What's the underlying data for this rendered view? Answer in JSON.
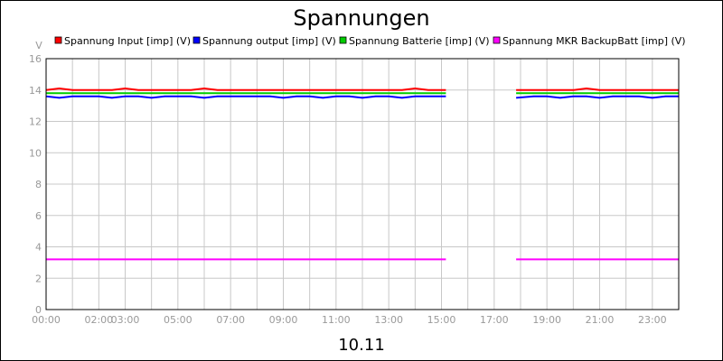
{
  "chart_data": {
    "type": "line",
    "title": "Spannungen",
    "xlabel": "10.11",
    "ylabel": "V",
    "xlim": [
      "00:00",
      "24:00"
    ],
    "ylim": [
      0,
      16
    ],
    "grid": true,
    "legend_position": "top",
    "x_ticks": [
      "00:00",
      "02:00",
      "03:00",
      "05:00",
      "07:00",
      "09:00",
      "11:00",
      "13:00",
      "15:00",
      "17:00",
      "19:00",
      "21:00",
      "23:00"
    ],
    "y_ticks": [
      0,
      2,
      4,
      6,
      8,
      10,
      12,
      14,
      16
    ],
    "gap": [
      "15:10",
      "17:50"
    ],
    "series": [
      {
        "name": "Spannung Input [imp] (V)",
        "color": "#ff0000",
        "segments": [
          {
            "x": [
              "00:00",
              "00:30",
              "01:00",
              "01:30",
              "02:00",
              "02:30",
              "03:00",
              "03:30",
              "04:00",
              "04:30",
              "05:00",
              "05:30",
              "06:00",
              "06:30",
              "07:00",
              "07:30",
              "08:00",
              "08:30",
              "09:00",
              "09:30",
              "10:00",
              "10:30",
              "11:00",
              "11:30",
              "12:00",
              "12:30",
              "13:00",
              "13:30",
              "14:00",
              "14:30",
              "15:10"
            ],
            "y": [
              14.0,
              14.1,
              14.0,
              14.0,
              14.0,
              14.0,
              14.1,
              14.0,
              14.0,
              14.0,
              14.0,
              14.0,
              14.1,
              14.0,
              14.0,
              14.0,
              14.0,
              14.0,
              14.0,
              14.0,
              14.0,
              14.0,
              14.0,
              14.0,
              14.0,
              14.0,
              14.0,
              14.0,
              14.1,
              14.0,
              14.0
            ]
          },
          {
            "x": [
              "17:50",
              "18:30",
              "19:00",
              "19:30",
              "20:00",
              "20:30",
              "21:00",
              "21:30",
              "22:00",
              "22:30",
              "23:00",
              "23:30",
              "24:00"
            ],
            "y": [
              14.0,
              14.0,
              14.0,
              14.0,
              14.0,
              14.1,
              14.0,
              14.0,
              14.0,
              14.0,
              14.0,
              14.0,
              14.0
            ]
          }
        ]
      },
      {
        "name": "Spannung output [imp] (V)",
        "color": "#0000ff",
        "segments": [
          {
            "x": [
              "00:00",
              "00:30",
              "01:00",
              "01:30",
              "02:00",
              "02:30",
              "03:00",
              "03:30",
              "04:00",
              "04:30",
              "05:00",
              "05:30",
              "06:00",
              "06:30",
              "07:00",
              "07:30",
              "08:00",
              "08:30",
              "09:00",
              "09:30",
              "10:00",
              "10:30",
              "11:00",
              "11:30",
              "12:00",
              "12:30",
              "13:00",
              "13:30",
              "14:00",
              "14:30",
              "15:10"
            ],
            "y": [
              13.6,
              13.5,
              13.6,
              13.6,
              13.6,
              13.5,
              13.6,
              13.6,
              13.5,
              13.6,
              13.6,
              13.6,
              13.5,
              13.6,
              13.6,
              13.6,
              13.6,
              13.6,
              13.5,
              13.6,
              13.6,
              13.5,
              13.6,
              13.6,
              13.5,
              13.6,
              13.6,
              13.5,
              13.6,
              13.6,
              13.6
            ]
          },
          {
            "x": [
              "17:50",
              "18:30",
              "19:00",
              "19:30",
              "20:00",
              "20:30",
              "21:00",
              "21:30",
              "22:00",
              "22:30",
              "23:00",
              "23:30",
              "24:00"
            ],
            "y": [
              13.5,
              13.6,
              13.6,
              13.5,
              13.6,
              13.6,
              13.5,
              13.6,
              13.6,
              13.6,
              13.5,
              13.6,
              13.6
            ]
          }
        ]
      },
      {
        "name": "Spannung Batterie [imp] (V)",
        "color": "#00cc00",
        "segments": [
          {
            "x": [
              "00:00",
              "01:00",
              "02:00",
              "03:00",
              "04:00",
              "05:00",
              "06:00",
              "07:00",
              "08:00",
              "09:00",
              "10:00",
              "11:00",
              "12:00",
              "13:00",
              "14:00",
              "15:10"
            ],
            "y": [
              13.8,
              13.8,
              13.8,
              13.8,
              13.8,
              13.8,
              13.8,
              13.8,
              13.8,
              13.8,
              13.8,
              13.8,
              13.8,
              13.8,
              13.8,
              13.8
            ]
          },
          {
            "x": [
              "17:50",
              "19:00",
              "20:00",
              "21:00",
              "22:00",
              "23:00",
              "24:00"
            ],
            "y": [
              13.8,
              13.8,
              13.8,
              13.8,
              13.8,
              13.8,
              13.8
            ]
          }
        ]
      },
      {
        "name": "Spannung MKR BackupBatt [imp] (V)",
        "color": "#ff00ff",
        "segments": [
          {
            "x": [
              "00:00",
              "15:10"
            ],
            "y": [
              3.2,
              3.2
            ]
          },
          {
            "x": [
              "17:50",
              "24:00"
            ],
            "y": [
              3.2,
              3.2
            ]
          }
        ]
      }
    ]
  }
}
